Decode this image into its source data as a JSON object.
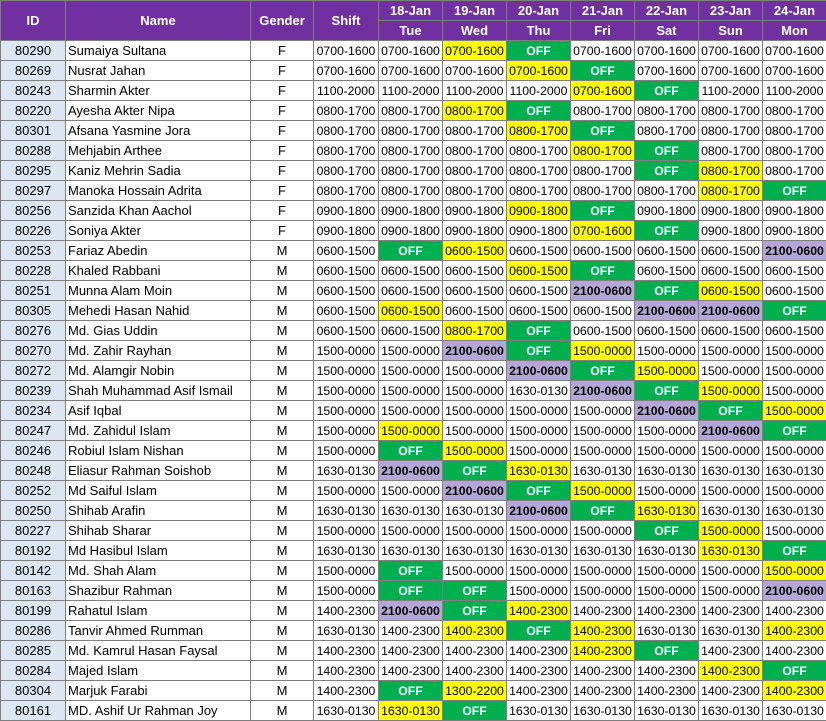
{
  "headers": {
    "id": "ID",
    "name": "Name",
    "gender": "Gender",
    "shift": "Shift"
  },
  "days": [
    {
      "date": "18-Jan",
      "day": "Tue"
    },
    {
      "date": "19-Jan",
      "day": "Wed"
    },
    {
      "date": "20-Jan",
      "day": "Thu"
    },
    {
      "date": "21-Jan",
      "day": "Fri"
    },
    {
      "date": "22-Jan",
      "day": "Sat"
    },
    {
      "date": "23-Jan",
      "day": "Sun"
    },
    {
      "date": "24-Jan",
      "day": "Mon"
    }
  ],
  "colors": {
    "header": "#7030a0",
    "id_cell": "#dce6f1",
    "off": "#00b050",
    "changed": "#ffff00",
    "night": "#b4a7d6"
  },
  "rows": [
    {
      "id": "80290",
      "name": "Sumaiya Sultana",
      "gender": "F",
      "shift": "0700-1600",
      "days": [
        "0700-1600",
        "0700-1600",
        "OFF",
        "0700-1600",
        "0700-1600",
        "0700-1600",
        "0700-1600"
      ],
      "hl": [
        "",
        "y",
        "o",
        "",
        "",
        "",
        ""
      ]
    },
    {
      "id": "80269",
      "name": "Nusrat Jahan",
      "gender": "F",
      "shift": "0700-1600",
      "days": [
        "0700-1600",
        "0700-1600",
        "0700-1600",
        "OFF",
        "0700-1600",
        "0700-1600",
        "0700-1600"
      ],
      "hl": [
        "",
        "",
        "y",
        "o",
        "",
        "",
        ""
      ]
    },
    {
      "id": "80243",
      "name": "Sharmin Akter",
      "gender": "F",
      "shift": "1100-2000",
      "days": [
        "1100-2000",
        "1100-2000",
        "1100-2000",
        "0700-1600",
        "OFF",
        "1100-2000",
        "1100-2000"
      ],
      "hl": [
        "",
        "",
        "",
        "y",
        "o",
        "",
        ""
      ]
    },
    {
      "id": "80220",
      "name": "Ayesha Akter Nipa",
      "gender": "F",
      "shift": "0800-1700",
      "days": [
        "0800-1700",
        "0800-1700",
        "OFF",
        "0800-1700",
        "0800-1700",
        "0800-1700",
        "0800-1700"
      ],
      "hl": [
        "",
        "y",
        "o",
        "",
        "",
        "",
        ""
      ]
    },
    {
      "id": "80301",
      "name": "Afsana Yasmine Jora",
      "gender": "F",
      "shift": "0800-1700",
      "days": [
        "0800-1700",
        "0800-1700",
        "0800-1700",
        "OFF",
        "0800-1700",
        "0800-1700",
        "0800-1700"
      ],
      "hl": [
        "",
        "",
        "y",
        "o",
        "",
        "",
        ""
      ]
    },
    {
      "id": "80288",
      "name": "Mehjabin Arthee",
      "gender": "F",
      "shift": "0800-1700",
      "days": [
        "0800-1700",
        "0800-1700",
        "0800-1700",
        "0800-1700",
        "OFF",
        "0800-1700",
        "0800-1700"
      ],
      "hl": [
        "",
        "",
        "",
        "y",
        "o",
        "",
        ""
      ]
    },
    {
      "id": "80295",
      "name": "Kaniz Mehrin Sadia",
      "gender": "F",
      "shift": "0800-1700",
      "days": [
        "0800-1700",
        "0800-1700",
        "0800-1700",
        "0800-1700",
        "OFF",
        "0800-1700",
        "0800-1700"
      ],
      "hl": [
        "",
        "",
        "",
        "",
        "o",
        "y",
        ""
      ]
    },
    {
      "id": "80297",
      "name": "Manoka Hossain Adrita",
      "gender": "F",
      "shift": "0800-1700",
      "days": [
        "0800-1700",
        "0800-1700",
        "0800-1700",
        "0800-1700",
        "0800-1700",
        "0800-1700",
        "OFF"
      ],
      "hl": [
        "",
        "",
        "",
        "",
        "",
        "y",
        "o"
      ]
    },
    {
      "id": "80256",
      "name": "Sanzida Khan Aachol",
      "gender": "F",
      "shift": "0900-1800",
      "days": [
        "0900-1800",
        "0900-1800",
        "0900-1800",
        "OFF",
        "0900-1800",
        "0900-1800",
        "0900-1800"
      ],
      "hl": [
        "",
        "",
        "y",
        "o",
        "",
        "",
        ""
      ]
    },
    {
      "id": "80226",
      "name": "Soniya Akter",
      "gender": "F",
      "shift": "0900-1800",
      "days": [
        "0900-1800",
        "0900-1800",
        "0900-1800",
        "0700-1600",
        "OFF",
        "0900-1800",
        "0900-1800"
      ],
      "hl": [
        "",
        "",
        "",
        "y",
        "o",
        "",
        ""
      ]
    },
    {
      "id": "80253",
      "name": "Fariaz Abedin",
      "gender": "M",
      "shift": "0600-1500",
      "days": [
        "OFF",
        "0600-1500",
        "0600-1500",
        "0600-1500",
        "0600-1500",
        "0600-1500",
        "2100-0600"
      ],
      "hl": [
        "o",
        "y",
        "",
        "",
        "",
        "",
        "n"
      ]
    },
    {
      "id": "80228",
      "name": "Khaled Rabbani",
      "gender": "M",
      "shift": "0600-1500",
      "days": [
        "0600-1500",
        "0600-1500",
        "0600-1500",
        "OFF",
        "0600-1500",
        "0600-1500",
        "0600-1500"
      ],
      "hl": [
        "",
        "",
        "y",
        "o",
        "",
        "",
        ""
      ]
    },
    {
      "id": "80251",
      "name": "Munna Alam Moin",
      "gender": "M",
      "shift": "0600-1500",
      "days": [
        "0600-1500",
        "0600-1500",
        "0600-1500",
        "2100-0600",
        "OFF",
        "0600-1500",
        "0600-1500"
      ],
      "hl": [
        "",
        "",
        "",
        "n",
        "o",
        "y",
        ""
      ]
    },
    {
      "id": "80305",
      "name": "Mehedi Hasan Nahid",
      "gender": "M",
      "shift": "0600-1500",
      "days": [
        "0600-1500",
        "0600-1500",
        "0600-1500",
        "0600-1500",
        "2100-0600",
        "2100-0600",
        "OFF"
      ],
      "hl": [
        "y",
        "",
        "",
        "",
        "n",
        "n",
        "o"
      ]
    },
    {
      "id": "80276",
      "name": "Md. Gias Uddin",
      "gender": "M",
      "shift": "0600-1500",
      "days": [
        "0600-1500",
        "0800-1700",
        "OFF",
        "0600-1500",
        "0600-1500",
        "0600-1500",
        "0600-1500"
      ],
      "hl": [
        "",
        "y",
        "o",
        "",
        "",
        "",
        ""
      ]
    },
    {
      "id": "80270",
      "name": "Md. Zahir Rayhan",
      "gender": "M",
      "shift": "1500-0000",
      "days": [
        "1500-0000",
        "2100-0600",
        "OFF",
        "1500-0000",
        "1500-0000",
        "1500-0000",
        "1500-0000"
      ],
      "hl": [
        "",
        "n",
        "o",
        "y",
        "",
        "",
        ""
      ]
    },
    {
      "id": "80272",
      "name": "Md. Alamgir Nobin",
      "gender": "M",
      "shift": "1500-0000",
      "days": [
        "1500-0000",
        "1500-0000",
        "2100-0600",
        "OFF",
        "1500-0000",
        "1500-0000",
        "1500-0000"
      ],
      "hl": [
        "",
        "",
        "n",
        "o",
        "y",
        "",
        ""
      ]
    },
    {
      "id": "80239",
      "name": "Shah Muhammad Asif Ismail",
      "gender": "M",
      "shift": "1500-0000",
      "days": [
        "1500-0000",
        "1500-0000",
        "1630-0130",
        "2100-0600",
        "OFF",
        "1500-0000",
        "1500-0000"
      ],
      "hl": [
        "",
        "",
        "",
        "n",
        "o",
        "y",
        ""
      ]
    },
    {
      "id": "80234",
      "name": "Asif Iqbal",
      "gender": "M",
      "shift": "1500-0000",
      "days": [
        "1500-0000",
        "1500-0000",
        "1500-0000",
        "1500-0000",
        "2100-0600",
        "OFF",
        "1500-0000"
      ],
      "hl": [
        "",
        "",
        "",
        "",
        "n",
        "o",
        "y"
      ]
    },
    {
      "id": "80247",
      "name": "Md. Zahidul Islam",
      "gender": "M",
      "shift": "1500-0000",
      "days": [
        "1500-0000",
        "1500-0000",
        "1500-0000",
        "1500-0000",
        "1500-0000",
        "2100-0600",
        "OFF"
      ],
      "hl": [
        "y",
        "",
        "",
        "",
        "",
        "n",
        "o"
      ]
    },
    {
      "id": "80246",
      "name": "Robiul Islam Nishan",
      "gender": "M",
      "shift": "1500-0000",
      "days": [
        "OFF",
        "1500-0000",
        "1500-0000",
        "1500-0000",
        "1500-0000",
        "1500-0000",
        "1500-0000"
      ],
      "hl": [
        "o",
        "y",
        "",
        "",
        "",
        "",
        ""
      ]
    },
    {
      "id": "80248",
      "name": "Eliasur Rahman Soishob",
      "gender": "M",
      "shift": "1630-0130",
      "days": [
        "2100-0600",
        "OFF",
        "1630-0130",
        "1630-0130",
        "1630-0130",
        "1630-0130",
        "1630-0130"
      ],
      "hl": [
        "n",
        "o",
        "y",
        "",
        "",
        "",
        ""
      ]
    },
    {
      "id": "80252",
      "name": "Md Saiful Islam",
      "gender": "M",
      "shift": "1500-0000",
      "days": [
        "1500-0000",
        "2100-0600",
        "OFF",
        "1500-0000",
        "1500-0000",
        "1500-0000",
        "1500-0000"
      ],
      "hl": [
        "",
        "n",
        "o",
        "y",
        "",
        "",
        ""
      ]
    },
    {
      "id": "80250",
      "name": "Shihab Arafin",
      "gender": "M",
      "shift": "1630-0130",
      "days": [
        "1630-0130",
        "1630-0130",
        "2100-0600",
        "OFF",
        "1630-0130",
        "1630-0130",
        "1630-0130"
      ],
      "hl": [
        "",
        "",
        "n",
        "o",
        "y",
        "",
        ""
      ]
    },
    {
      "id": "80227",
      "name": "Shihab Sharar",
      "gender": "M",
      "shift": "1500-0000",
      "days": [
        "1500-0000",
        "1500-0000",
        "1500-0000",
        "1500-0000",
        "OFF",
        "1500-0000",
        "1500-0000"
      ],
      "hl": [
        "",
        "",
        "",
        "",
        "o",
        "y",
        ""
      ]
    },
    {
      "id": "80192",
      "name": "Md Hasibul Islam",
      "gender": "M",
      "shift": "1630-0130",
      "days": [
        "1630-0130",
        "1630-0130",
        "1630-0130",
        "1630-0130",
        "1630-0130",
        "1630-0130",
        "OFF"
      ],
      "hl": [
        "",
        "",
        "",
        "",
        "",
        "y",
        "o"
      ]
    },
    {
      "id": "80142",
      "name": "Md. Shah Alam",
      "gender": "M",
      "shift": "1500-0000",
      "days": [
        "OFF",
        "1500-0000",
        "1500-0000",
        "1500-0000",
        "1500-0000",
        "1500-0000",
        "1500-0000"
      ],
      "hl": [
        "o",
        "",
        "",
        "",
        "",
        "",
        "y"
      ]
    },
    {
      "id": "80163",
      "name": "Shazibur Rahman",
      "gender": "M",
      "shift": "1500-0000",
      "days": [
        "OFF",
        "OFF",
        "1500-0000",
        "1500-0000",
        "1500-0000",
        "1500-0000",
        "2100-0600"
      ],
      "hl": [
        "o",
        "o",
        "",
        "",
        "",
        "",
        "n"
      ]
    },
    {
      "id": "80199",
      "name": "Rahatul Islam",
      "gender": "M",
      "shift": "1400-2300",
      "days": [
        "2100-0600",
        "OFF",
        "1400-2300",
        "1400-2300",
        "1400-2300",
        "1400-2300",
        "1400-2300"
      ],
      "hl": [
        "n",
        "o",
        "y",
        "",
        "",
        "",
        ""
      ]
    },
    {
      "id": "80286",
      "name": "Tanvir Ahmed Rumman",
      "gender": "M",
      "shift": "1630-0130",
      "days": [
        "1400-2300",
        "1400-2300",
        "OFF",
        "1400-2300",
        "1630-0130",
        "1630-0130",
        "1400-2300"
      ],
      "hl": [
        "",
        "y",
        "o",
        "y",
        "",
        "",
        "y"
      ]
    },
    {
      "id": "80285",
      "name": "Md. Kamrul Hasan Faysal",
      "gender": "M",
      "shift": "1400-2300",
      "days": [
        "1400-2300",
        "1400-2300",
        "1400-2300",
        "1400-2300",
        "OFF",
        "1400-2300",
        "1400-2300"
      ],
      "hl": [
        "",
        "",
        "",
        "y",
        "o",
        "",
        ""
      ]
    },
    {
      "id": "80284",
      "name": "Majed Islam",
      "gender": "M",
      "shift": "1400-2300",
      "days": [
        "1400-2300",
        "1400-2300",
        "1400-2300",
        "1400-2300",
        "1400-2300",
        "1400-2300",
        "OFF"
      ],
      "hl": [
        "",
        "",
        "",
        "",
        "",
        "y",
        "o"
      ]
    },
    {
      "id": "80304",
      "name": "Marjuk Farabi",
      "gender": "M",
      "shift": "1400-2300",
      "days": [
        "OFF",
        "1300-2200",
        "1400-2300",
        "1400-2300",
        "1400-2300",
        "1400-2300",
        "1400-2300"
      ],
      "hl": [
        "o",
        "y",
        "",
        "",
        "",
        "",
        "y"
      ]
    },
    {
      "id": "80161",
      "name": "MD. Ashif Ur Rahman Joy",
      "gender": "M",
      "shift": "1630-0130",
      "days": [
        "1630-0130",
        "OFF",
        "1630-0130",
        "1630-0130",
        "1630-0130",
        "1630-0130",
        "1630-0130"
      ],
      "hl": [
        "y",
        "o",
        "",
        "",
        "",
        "",
        ""
      ]
    }
  ]
}
